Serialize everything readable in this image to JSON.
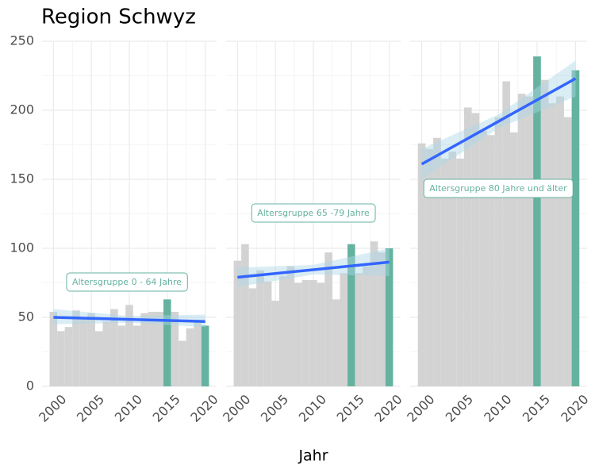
{
  "title": "Region Schwyz",
  "x_label": "Jahr",
  "chart_data": [
    {
      "type": "bar",
      "annotation": "Altersgruppe 0 - 64 Jahre",
      "x": [
        2000,
        2001,
        2002,
        2003,
        2004,
        2005,
        2006,
        2007,
        2008,
        2009,
        2010,
        2011,
        2012,
        2013,
        2014,
        2015,
        2016,
        2017,
        2018,
        2019,
        2020
      ],
      "values": [
        54,
        40,
        43,
        55,
        50,
        53,
        40,
        47,
        56,
        44,
        59,
        44,
        53,
        54,
        54,
        63,
        54,
        33,
        42,
        48,
        44
      ],
      "color": "#d3d3d3",
      "highlight_x": [
        2015,
        2020
      ],
      "highlight_color": "#66b2a0",
      "trend": {
        "x": [
          2000,
          2010,
          2020
        ],
        "values": [
          50,
          48.5,
          47
        ],
        "lower": [
          45,
          46,
          43
        ],
        "upper": [
          56,
          51,
          52
        ],
        "color": "#3366ff",
        "band_color": "#add8e6"
      },
      "xlim": [
        1998.5,
        2021.5
      ],
      "xticks": [
        2000,
        2005,
        2010,
        2015,
        2020
      ],
      "ylim": [
        0,
        250
      ],
      "yticks": [
        0,
        50,
        100,
        150,
        200,
        250
      ],
      "grid": true
    },
    {
      "type": "bar",
      "annotation": "Altersgruppe 65 -79 Jahre",
      "x": [
        2000,
        2001,
        2002,
        2003,
        2004,
        2005,
        2006,
        2007,
        2008,
        2009,
        2010,
        2011,
        2012,
        2013,
        2014,
        2015,
        2016,
        2017,
        2018,
        2019,
        2020
      ],
      "values": [
        91,
        103,
        71,
        84,
        76,
        62,
        80,
        87,
        75,
        77,
        77,
        75,
        97,
        63,
        82,
        103,
        82,
        87,
        105,
        97,
        100
      ],
      "color": "#d3d3d3",
      "highlight_x": [
        2015,
        2020
      ],
      "highlight_color": "#66b2a0",
      "trend": {
        "x": [
          2000,
          2010,
          2020
        ],
        "values": [
          79,
          84.5,
          90
        ],
        "lower": [
          72,
          81,
          80
        ],
        "upper": [
          86,
          88,
          100
        ],
        "color": "#3366ff",
        "band_color": "#add8e6"
      },
      "xlim": [
        1998.5,
        2021.5
      ],
      "xticks": [
        2000,
        2005,
        2010,
        2015,
        2020
      ],
      "ylim": [
        0,
        250
      ],
      "yticks": [
        0,
        50,
        100,
        150,
        200,
        250
      ],
      "grid": true
    },
    {
      "type": "bar",
      "annotation": "Altersgruppe 80 Jahre und älter",
      "x": [
        2000,
        2001,
        2002,
        2003,
        2004,
        2005,
        2006,
        2007,
        2008,
        2009,
        2010,
        2011,
        2012,
        2013,
        2014,
        2015,
        2016,
        2017,
        2018,
        2019,
        2020
      ],
      "values": [
        176,
        172,
        180,
        165,
        170,
        165,
        202,
        198,
        185,
        182,
        195,
        221,
        184,
        212,
        210,
        239,
        222,
        205,
        210,
        195,
        229
      ],
      "color": "#d3d3d3",
      "highlight_x": [
        2015,
        2020
      ],
      "highlight_color": "#66b2a0",
      "trend": {
        "x": [
          2000,
          2010,
          2020
        ],
        "values": [
          161,
          192,
          223
        ],
        "lower": [
          150,
          187,
          210
        ],
        "upper": [
          172,
          197,
          236
        ],
        "color": "#3366ff",
        "band_color": "#add8e6"
      },
      "xlim": [
        1998.5,
        2021.5
      ],
      "xticks": [
        2000,
        2005,
        2010,
        2015,
        2020
      ],
      "ylim": [
        0,
        250
      ],
      "yticks": [
        0,
        50,
        100,
        150,
        200,
        250
      ],
      "grid": true
    }
  ]
}
